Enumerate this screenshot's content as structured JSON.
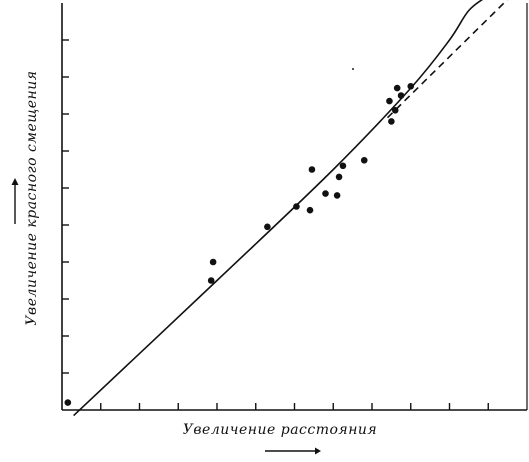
{
  "chart_data": {
    "type": "scatter",
    "title": "",
    "xlabel": "Увеличение расстояния",
    "ylabel": "Увеличение красного смещения",
    "xlim": [
      0,
      12
    ],
    "ylim": [
      0,
      11
    ],
    "grid": false,
    "points": [
      {
        "x": 0.15,
        "y": 0.2
      },
      {
        "x": 3.85,
        "y": 3.5
      },
      {
        "x": 3.9,
        "y": 4.0
      },
      {
        "x": 5.3,
        "y": 4.95
      },
      {
        "x": 6.05,
        "y": 5.5
      },
      {
        "x": 6.4,
        "y": 5.4
      },
      {
        "x": 6.45,
        "y": 6.5
      },
      {
        "x": 6.8,
        "y": 5.85
      },
      {
        "x": 7.1,
        "y": 5.8
      },
      {
        "x": 7.15,
        "y": 6.3
      },
      {
        "x": 7.25,
        "y": 6.6
      },
      {
        "x": 7.8,
        "y": 6.75
      },
      {
        "x": 8.5,
        "y": 7.8
      },
      {
        "x": 8.45,
        "y": 8.35
      },
      {
        "x": 8.6,
        "y": 8.1
      },
      {
        "x": 8.65,
        "y": 8.7
      },
      {
        "x": 8.75,
        "y": 8.5
      },
      {
        "x": 9.0,
        "y": 8.75
      }
    ],
    "series": [
      {
        "style": "solid",
        "x": [
          0.3,
          4,
          7,
          9,
          10,
          10.5,
          11.0
        ],
        "y": [
          -0.15,
          3.5,
          6.5,
          8.7,
          10.0,
          10.8,
          11.2
        ]
      },
      {
        "style": "dashed",
        "x": [
          8.4,
          11.6
        ],
        "y": [
          7.9,
          11.2
        ]
      }
    ]
  }
}
